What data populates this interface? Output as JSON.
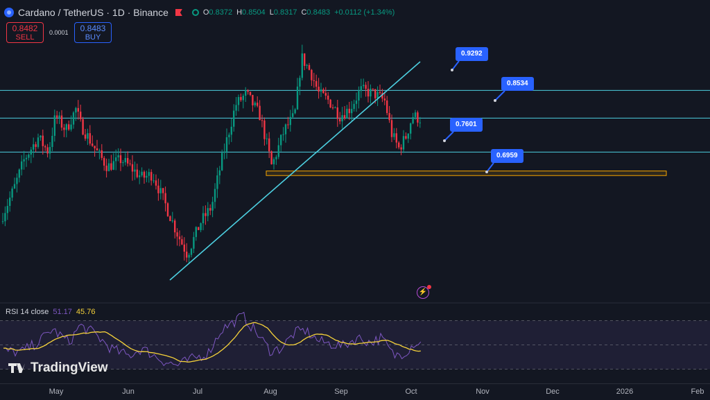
{
  "header": {
    "symbol": "Cardano / TetherUS · 1D · Binance",
    "ohlc": [
      {
        "k": "O",
        "v": "0.8372"
      },
      {
        "k": "H",
        "v": "0.8504"
      },
      {
        "k": "L",
        "v": "0.8317"
      },
      {
        "k": "C",
        "v": "0.8483"
      },
      {
        "k": "",
        "v": "+0.0112 (+1.34%)"
      }
    ]
  },
  "trade": {
    "sell_price": "0.8482",
    "sell_label": "SELL",
    "spread": "0.0001",
    "buy_price": "0.8483",
    "buy_label": "BUY"
  },
  "rsi": {
    "name": "RSI 14 close",
    "rsi_value": "51.17",
    "ma_value": "45.76",
    "upper": 70,
    "middle": 50,
    "lower": 30
  },
  "brand": {
    "name": "TradingView"
  },
  "colors": {
    "up": "#089981",
    "down": "#f23645",
    "line": "#4dd0e1",
    "zone": "#f7a600",
    "rsi": "#7e57c2",
    "rsi_ma": "#f7d33a",
    "badge": "#2962ff"
  },
  "chart_data": {
    "type": "candlestick",
    "x_ticks": [
      "May",
      "Jun",
      "Jul",
      "Aug",
      "Sep",
      "Oct",
      "Nov",
      "Dec",
      "2026",
      "Feb"
    ],
    "horizontal_levels": [
      0.9292,
      0.8534,
      0.7601
    ],
    "zone": {
      "from": 0.6959,
      "to": 0.7083
    },
    "level_labels": [
      "0.9292",
      "0.8534",
      "0.7601",
      "0.6959"
    ],
    "trendline": {
      "from": [
        "Jul 1",
        0.45
      ],
      "to": [
        "Oct 3",
        0.99
      ]
    },
    "waypoints": [
      [
        0,
        0.57
      ],
      [
        20,
        0.66
      ],
      [
        35,
        0.74
      ],
      [
        55,
        0.8
      ],
      [
        70,
        0.76
      ],
      [
        80,
        0.86
      ],
      [
        95,
        0.82
      ],
      [
        110,
        0.88
      ],
      [
        115,
        0.84
      ],
      [
        140,
        0.76
      ],
      [
        155,
        0.72
      ],
      [
        175,
        0.74
      ],
      [
        205,
        0.69
      ],
      [
        220,
        0.7
      ],
      [
        240,
        0.61
      ],
      [
        255,
        0.54
      ],
      [
        270,
        0.48
      ],
      [
        290,
        0.57
      ],
      [
        305,
        0.61
      ],
      [
        320,
        0.74
      ],
      [
        340,
        0.89
      ],
      [
        355,
        0.92
      ],
      [
        375,
        0.86
      ],
      [
        385,
        0.78
      ],
      [
        392,
        0.72
      ],
      [
        410,
        0.82
      ],
      [
        425,
        0.86
      ],
      [
        435,
        1.02
      ],
      [
        448,
        0.98
      ],
      [
        460,
        0.92
      ],
      [
        475,
        0.9
      ],
      [
        490,
        0.86
      ],
      [
        505,
        0.88
      ],
      [
        520,
        0.93
      ],
      [
        540,
        0.92
      ],
      [
        555,
        0.9
      ],
      [
        565,
        0.81
      ],
      [
        575,
        0.77
      ],
      [
        585,
        0.8
      ],
      [
        595,
        0.86
      ],
      [
        608,
        0.85
      ]
    ],
    "rsi_waypoints": [
      [
        5,
        45
      ],
      [
        30,
        44
      ],
      [
        55,
        52
      ],
      [
        75,
        63
      ],
      [
        100,
        52
      ],
      [
        115,
        66
      ],
      [
        135,
        60
      ],
      [
        160,
        47
      ],
      [
        185,
        41
      ],
      [
        205,
        47
      ],
      [
        235,
        37
      ],
      [
        255,
        33
      ],
      [
        275,
        38
      ],
      [
        300,
        43
      ],
      [
        320,
        63
      ],
      [
        335,
        68
      ],
      [
        350,
        74
      ],
      [
        370,
        60
      ],
      [
        390,
        45
      ],
      [
        405,
        47
      ],
      [
        425,
        60
      ],
      [
        440,
        62
      ],
      [
        460,
        53
      ],
      [
        475,
        51
      ],
      [
        495,
        49
      ],
      [
        515,
        56
      ],
      [
        535,
        52
      ],
      [
        550,
        56
      ],
      [
        568,
        41
      ],
      [
        585,
        44
      ],
      [
        598,
        52
      ],
      [
        608,
        51
      ]
    ],
    "rsi_range": [
      20,
      80
    ]
  }
}
